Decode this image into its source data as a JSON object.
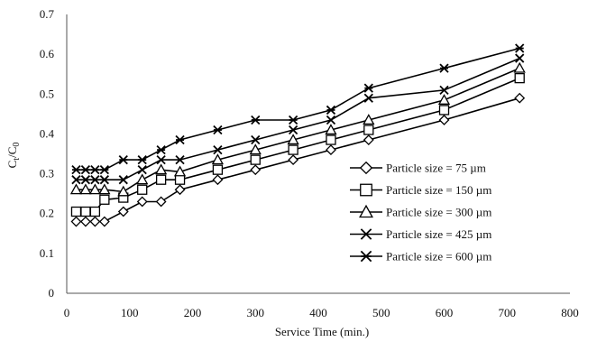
{
  "chart_data": {
    "type": "line",
    "title": "",
    "xlabel": "Service Time (min.)",
    "ylabel_main": "C",
    "ylabel_sub1": "t",
    "ylabel_mid": "/C",
    "ylabel_sub2": "0",
    "xlim": [
      0,
      800
    ],
    "ylim": [
      0,
      0.7
    ],
    "x_ticks": [
      "0",
      "100",
      "200",
      "300",
      "400",
      "500",
      "600",
      "700",
      "800"
    ],
    "y_ticks": [
      "0",
      "0.1",
      "0.2",
      "0.3",
      "0.4",
      "0.5",
      "0.6",
      "0.7"
    ],
    "grid": false,
    "legend_position": "right-center",
    "series": [
      {
        "name": "Particle size = 75 µm",
        "marker": "diamond",
        "x": [
          15,
          30,
          45,
          60,
          90,
          120,
          150,
          180,
          240,
          300,
          360,
          420,
          480,
          600,
          720
        ],
        "y": [
          0.18,
          0.18,
          0.18,
          0.18,
          0.205,
          0.23,
          0.23,
          0.26,
          0.285,
          0.31,
          0.335,
          0.36,
          0.385,
          0.435,
          0.49
        ]
      },
      {
        "name": "Particle size = 150 µm",
        "marker": "square",
        "x": [
          15,
          30,
          45,
          60,
          90,
          120,
          150,
          180,
          240,
          300,
          360,
          420,
          480,
          600,
          720
        ],
        "y": [
          0.205,
          0.205,
          0.205,
          0.235,
          0.24,
          0.26,
          0.285,
          0.285,
          0.31,
          0.335,
          0.36,
          0.385,
          0.41,
          0.46,
          0.54
        ]
      },
      {
        "name": "Particle size = 300 µm",
        "marker": "triangle",
        "x": [
          15,
          30,
          45,
          60,
          90,
          120,
          150,
          180,
          240,
          300,
          360,
          420,
          480,
          600,
          720
        ],
        "y": [
          0.26,
          0.26,
          0.26,
          0.26,
          0.255,
          0.285,
          0.31,
          0.305,
          0.335,
          0.36,
          0.385,
          0.41,
          0.435,
          0.485,
          0.565
        ]
      },
      {
        "name": "Particle size = 425 µm",
        "marker": "x",
        "x": [
          15,
          30,
          45,
          60,
          90,
          120,
          150,
          180,
          240,
          300,
          360,
          420,
          480,
          600,
          720
        ],
        "y": [
          0.285,
          0.285,
          0.285,
          0.285,
          0.285,
          0.31,
          0.335,
          0.335,
          0.36,
          0.385,
          0.41,
          0.435,
          0.49,
          0.51,
          0.59
        ]
      },
      {
        "name": "Particle size = 600 µm",
        "marker": "star",
        "x": [
          15,
          30,
          45,
          60,
          90,
          120,
          150,
          180,
          240,
          300,
          360,
          420,
          480,
          600,
          720
        ],
        "y": [
          0.31,
          0.31,
          0.31,
          0.31,
          0.335,
          0.335,
          0.36,
          0.385,
          0.41,
          0.435,
          0.435,
          0.46,
          0.515,
          0.565,
          0.615
        ]
      }
    ]
  }
}
